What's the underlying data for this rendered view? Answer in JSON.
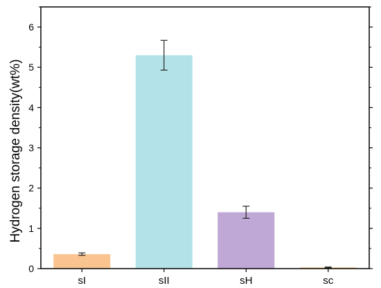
{
  "chart_data": {
    "type": "bar",
    "title": "",
    "xlabel": "",
    "ylabel": "Hydrogen storage density(wt%)",
    "categories": [
      "sI",
      "sII",
      "sH",
      "sc"
    ],
    "values": [
      0.36,
      5.3,
      1.4,
      0.03
    ],
    "errors": [
      0.03,
      0.37,
      0.15,
      0.01
    ],
    "colors": [
      "#fac491",
      "#b3e3e8",
      "#bfa8d5",
      "#fac491"
    ],
    "ylim": [
      0,
      6.5
    ],
    "yticks": [
      0,
      1,
      2,
      3,
      4,
      5,
      6
    ],
    "ytick_labels": [
      "0",
      "1",
      "2",
      "3",
      "4",
      "5",
      "6"
    ],
    "grid": false,
    "legend": "none"
  }
}
